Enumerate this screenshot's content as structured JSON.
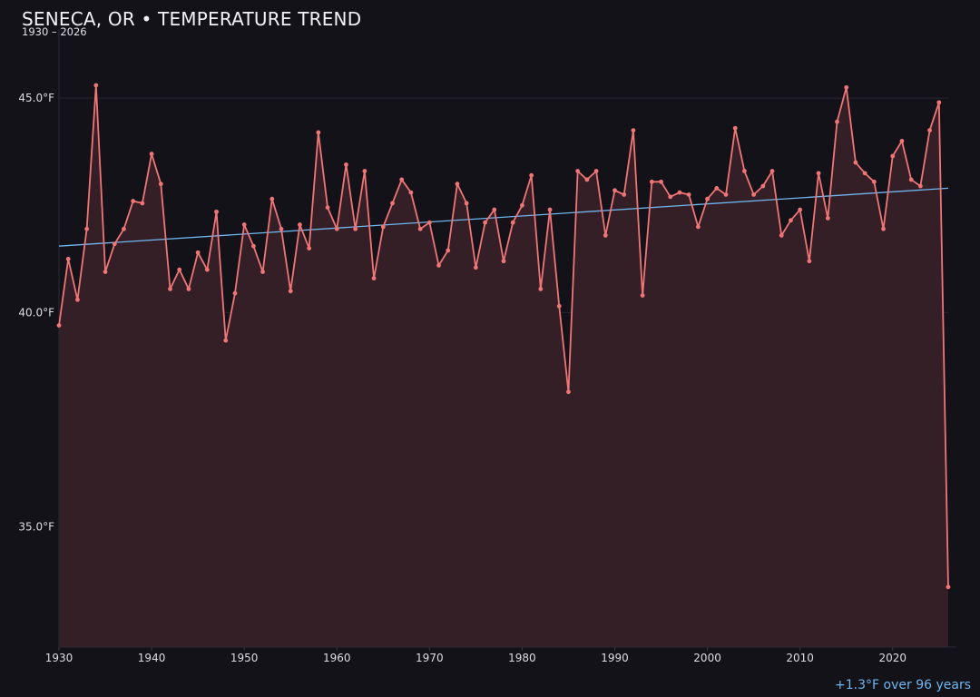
{
  "header": {
    "title": "SENECA, OR • TEMPERATURE TREND",
    "subtitle": "1930 – 2026"
  },
  "footer": {
    "trend_note": "+1.3°F over 96 years"
  },
  "colors": {
    "background": "#131218",
    "series_line": "#f07577",
    "series_fill": "#341f26",
    "trend_line": "#6fb6ee",
    "grid": "#26242c",
    "text": "#e8e8ee"
  },
  "chart_data": {
    "type": "line",
    "title": "SENECA, OR • TEMPERATURE TREND",
    "subtitle": "1930 – 2026",
    "xlabel": "",
    "ylabel": "",
    "xlim": [
      1930,
      2026
    ],
    "ylim": [
      32.2,
      46.4
    ],
    "x_ticks": [
      1930,
      1940,
      1950,
      1960,
      1970,
      1980,
      1990,
      2000,
      2010,
      2020
    ],
    "x_tick_labels": [
      "1930",
      "1940",
      "1950",
      "1960",
      "1970",
      "1980",
      "1990",
      "2000",
      "2010",
      "2020"
    ],
    "y_ticks": [
      35,
      40,
      45
    ],
    "y_tick_labels": [
      "35.0°F",
      "40.0°F",
      "45.0°F"
    ],
    "grid": true,
    "area_fill": true,
    "series": [
      {
        "x": [
          1930,
          1931,
          1932,
          1933,
          1934,
          1935,
          1936,
          1937,
          1938,
          1939,
          1940,
          1941,
          1942,
          1943,
          1944,
          1945,
          1946,
          1947,
          1948,
          1949,
          1950,
          1951,
          1952,
          1953,
          1954,
          1955,
          1956,
          1957,
          1958,
          1959,
          1960,
          1961,
          1962,
          1963,
          1964,
          1965,
          1966,
          1967,
          1968,
          1969,
          1970,
          1971,
          1972,
          1973,
          1974,
          1975,
          1976,
          1977,
          1978,
          1979,
          1980,
          1981,
          1982,
          1983,
          1984,
          1985,
          1986,
          1987,
          1988,
          1989,
          1990,
          1991,
          1992,
          1993,
          1994,
          1995,
          1996,
          1997,
          1998,
          1999,
          2000,
          2001,
          2002,
          2003,
          2004,
          2005,
          2006,
          2007,
          2008,
          2009,
          2010,
          2011,
          2012,
          2013,
          2014,
          2015,
          2016,
          2017,
          2018,
          2019,
          2020,
          2021,
          2022,
          2023,
          2024,
          2025,
          2026
        ],
        "values": [
          39.7,
          41.25,
          40.3,
          41.95,
          45.3,
          40.95,
          41.6,
          41.95,
          42.6,
          42.55,
          43.7,
          43.0,
          40.55,
          41.0,
          40.55,
          41.4,
          41.0,
          42.35,
          39.35,
          40.45,
          42.05,
          41.55,
          40.95,
          42.65,
          41.95,
          40.5,
          42.05,
          41.5,
          44.2,
          42.45,
          41.95,
          43.45,
          41.95,
          43.3,
          40.8,
          42.0,
          42.55,
          43.1,
          42.8,
          41.95,
          42.1,
          41.1,
          41.45,
          43.0,
          42.55,
          41.05,
          42.1,
          42.4,
          41.2,
          42.1,
          42.5,
          43.2,
          40.55,
          42.4,
          40.15,
          38.15,
          43.3,
          43.1,
          43.3,
          41.8,
          42.85,
          42.75,
          44.25,
          40.4,
          43.05,
          43.05,
          42.7,
          42.8,
          42.75,
          42.0,
          42.65,
          42.9,
          42.75,
          44.3,
          43.3,
          42.75,
          42.95,
          43.3,
          41.8,
          42.15,
          42.4,
          41.2,
          43.25,
          42.2,
          44.45,
          45.25,
          43.5,
          43.25,
          43.05,
          41.95,
          43.65,
          44.0,
          43.1,
          42.95,
          44.25,
          44.9,
          33.6
        ]
      }
    ],
    "trend": {
      "x": [
        1930,
        2026
      ],
      "values": [
        41.55,
        42.9
      ]
    }
  }
}
